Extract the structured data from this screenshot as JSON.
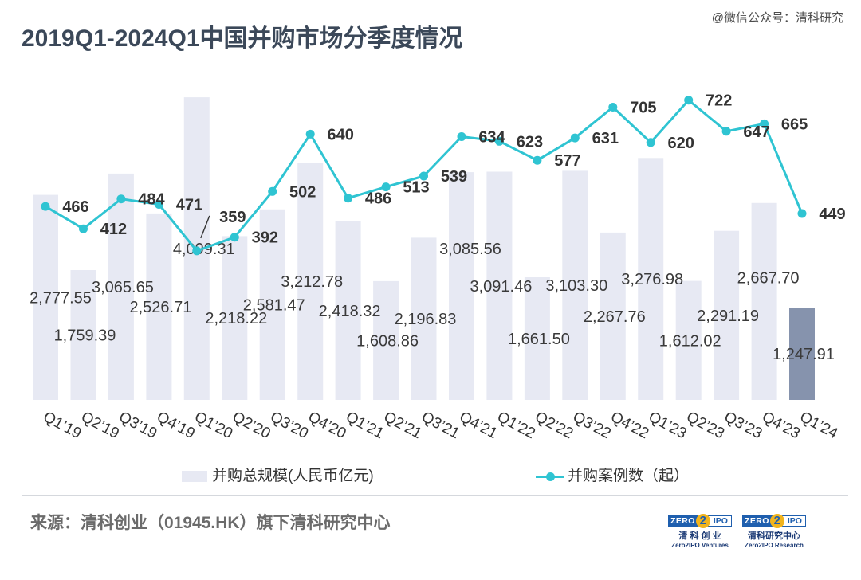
{
  "watermark": "@微信公众号：清科研究",
  "chart_data": {
    "type": "bar",
    "title": "2019Q1-2024Q1中国并购市场分季度情况",
    "xlabel": "",
    "ylabel": "",
    "categories": [
      "Q1’19",
      "Q2’19",
      "Q3’19",
      "Q4’19",
      "Q1’20",
      "Q2’20",
      "Q3’20",
      "Q4’20",
      "Q1’21",
      "Q2’21",
      "Q3’21",
      "Q4’21",
      "Q1’22",
      "Q2’22",
      "Q3’22",
      "Q4’22",
      "Q1’23",
      "Q2’23",
      "Q3’23",
      "Q4’23",
      "Q1’24"
    ],
    "series": [
      {
        "name": "并购总规模(人民币亿元)",
        "type": "bar",
        "axis": "left",
        "values": [
          2777.55,
          1759.39,
          3065.65,
          2526.71,
          4099.31,
          2218.22,
          2581.47,
          3212.78,
          2418.32,
          1608.86,
          2196.83,
          3085.56,
          3091.46,
          1661.5,
          3103.3,
          2267.76,
          3276.98,
          1612.02,
          2291.19,
          2667.7,
          1247.91
        ],
        "color": "#e7e9f3",
        "bar_colors": [
          "#e7e9f3",
          "#e7e9f3",
          "#e7e9f3",
          "#e7e9f3",
          "#e7e9f3",
          "#e7e9f3",
          "#e7e9f3",
          "#e7e9f3",
          "#e7e9f3",
          "#e7e9f3",
          "#e7e9f3",
          "#e7e9f3",
          "#e7e9f3",
          "#e7e9f3",
          "#e7e9f3",
          "#e7e9f3",
          "#e7e9f3",
          "#e7e9f3",
          "#e7e9f3",
          "#e7e9f3",
          "#8693ad"
        ]
      },
      {
        "name": "并购案例数（起）",
        "type": "line",
        "axis": "right",
        "values": [
          466,
          412,
          484,
          471,
          359,
          392,
          502,
          640,
          486,
          513,
          539,
          634,
          623,
          577,
          631,
          705,
          620,
          722,
          647,
          665,
          449
        ],
        "color": "#2fc4d2"
      }
    ],
    "ylim_left": [
      0,
      4500
    ],
    "ylim_right": [
      0,
      800
    ],
    "grid": false,
    "axes_visible": false,
    "data_labels": true,
    "legend_position": "bottom"
  },
  "footer": {
    "source": "来源：清科创业（01945.HK）旗下清科研究中心"
  },
  "logos": [
    {
      "mark_left": "ZERO",
      "mark_mid": "2",
      "mark_right": "IPO",
      "name_cn": "清 科 创 业",
      "name_en": "Zero2IPO Ventures"
    },
    {
      "mark_left": "ZERO",
      "mark_mid": "2",
      "mark_right": "IPO",
      "name_cn": "清科研究中心",
      "name_en": "Zero2IPO Research"
    }
  ]
}
